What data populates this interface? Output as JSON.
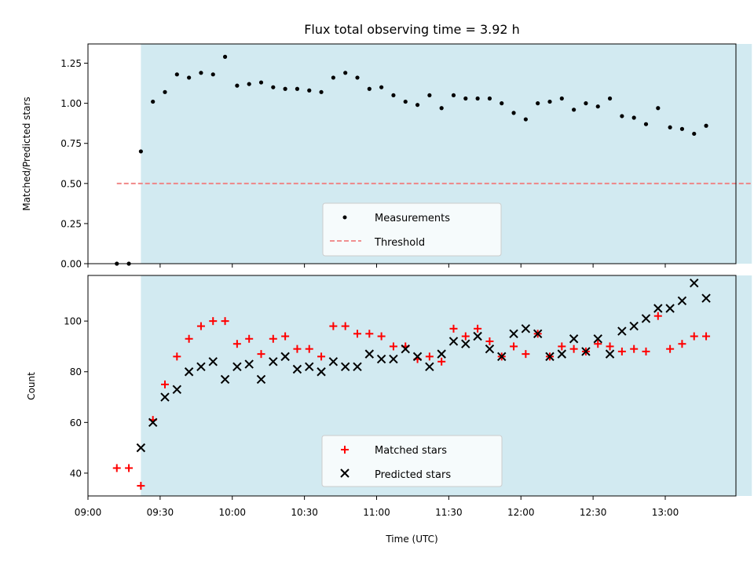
{
  "chart_data": [
    {
      "type": "scatter",
      "title": "Flux total observing time = 3.92 h",
      "xlabel": "",
      "ylabel": "Matched/Predicted stars",
      "ylim": [
        0.0,
        1.37
      ],
      "yticks": [
        "0.00",
        "0.25",
        "0.50",
        "0.75",
        "1.00",
        "1.25"
      ],
      "xlim": [
        "09:00",
        "13:30"
      ],
      "shaded_interval": [
        "09:22",
        "13:36"
      ],
      "shade_color": "#add8e6",
      "series": [
        {
          "name": "Measurements",
          "color": "#000000",
          "marker": "dot",
          "x": [
            "09:12",
            "09:17",
            "09:22",
            "09:27",
            "09:32",
            "09:37",
            "09:42",
            "09:47",
            "09:52",
            "09:57",
            "10:02",
            "10:07",
            "10:12",
            "10:17",
            "10:22",
            "10:27",
            "10:32",
            "10:37",
            "10:42",
            "10:47",
            "10:52",
            "10:57",
            "11:02",
            "11:07",
            "11:12",
            "11:17",
            "11:22",
            "11:27",
            "11:32",
            "11:37",
            "11:42",
            "11:47",
            "11:52",
            "11:57",
            "12:02",
            "12:07",
            "12:12",
            "12:17",
            "12:22",
            "12:27",
            "12:32",
            "12:37",
            "12:42",
            "12:47",
            "12:52",
            "12:57",
            "13:02",
            "13:07",
            "13:12",
            "13:17"
          ],
          "y": [
            0.0,
            0.0,
            0.7,
            1.01,
            1.07,
            1.18,
            1.16,
            1.19,
            1.18,
            1.29,
            1.11,
            1.12,
            1.13,
            1.1,
            1.09,
            1.09,
            1.08,
            1.07,
            1.16,
            1.19,
            1.16,
            1.09,
            1.1,
            1.05,
            1.01,
            0.99,
            1.05,
            0.97,
            1.05,
            1.03,
            1.03,
            1.03,
            1.0,
            0.94,
            0.9,
            1.0,
            1.01,
            1.03,
            0.96,
            1.0,
            0.98,
            1.03,
            0.92,
            0.91,
            0.87,
            0.97,
            0.85,
            0.84,
            0.81,
            0.86
          ]
        },
        {
          "name": "Threshold",
          "color": "#f08080",
          "style": "dashed",
          "x": [
            "09:12",
            "13:36"
          ],
          "y": [
            0.5,
            0.5
          ]
        }
      ],
      "legend": "lower-center"
    },
    {
      "type": "scatter",
      "title": "",
      "xlabel": "Time (UTC)",
      "ylabel": "Count",
      "ylim": [
        31,
        118
      ],
      "yticks": [
        "40",
        "60",
        "80",
        "100"
      ],
      "xlim": [
        "09:00",
        "13:30"
      ],
      "xticks": [
        "09:00",
        "09:30",
        "10:00",
        "10:30",
        "11:00",
        "11:30",
        "12:00",
        "12:30",
        "13:00"
      ],
      "shaded_interval": [
        "09:22",
        "13:36"
      ],
      "shade_color": "#add8e6",
      "series": [
        {
          "name": "Matched stars",
          "color": "#ff0000",
          "marker": "plus",
          "x": [
            "09:12",
            "09:17",
            "09:22",
            "09:27",
            "09:32",
            "09:37",
            "09:42",
            "09:47",
            "09:52",
            "09:57",
            "10:02",
            "10:07",
            "10:12",
            "10:17",
            "10:22",
            "10:27",
            "10:32",
            "10:37",
            "10:42",
            "10:47",
            "10:52",
            "10:57",
            "11:02",
            "11:07",
            "11:12",
            "11:17",
            "11:22",
            "11:27",
            "11:32",
            "11:37",
            "11:42",
            "11:47",
            "11:52",
            "11:57",
            "12:02",
            "12:07",
            "12:12",
            "12:17",
            "12:22",
            "12:27",
            "12:32",
            "12:37",
            "12:42",
            "12:47",
            "12:52",
            "12:57",
            "13:02",
            "13:07",
            "13:12",
            "13:17"
          ],
          "y": [
            42,
            42,
            35,
            61,
            75,
            86,
            93,
            98,
            100,
            100,
            91,
            93,
            87,
            93,
            94,
            89,
            89,
            86,
            98,
            98,
            95,
            95,
            94,
            90,
            90,
            85,
            86,
            84,
            97,
            94,
            97,
            92,
            86,
            90,
            87,
            95,
            86,
            90,
            89,
            88,
            91,
            90,
            88,
            89,
            88,
            102,
            89,
            91,
            94,
            94
          ]
        },
        {
          "name": "Predicted stars",
          "color": "#000000",
          "marker": "x",
          "x": [
            "09:22",
            "09:27",
            "09:32",
            "09:37",
            "09:42",
            "09:47",
            "09:52",
            "09:57",
            "10:02",
            "10:07",
            "10:12",
            "10:17",
            "10:22",
            "10:27",
            "10:32",
            "10:37",
            "10:42",
            "10:47",
            "10:52",
            "10:57",
            "11:02",
            "11:07",
            "11:12",
            "11:17",
            "11:22",
            "11:27",
            "11:32",
            "11:37",
            "11:42",
            "11:47",
            "11:52",
            "11:57",
            "12:02",
            "12:07",
            "12:12",
            "12:17",
            "12:22",
            "12:27",
            "12:32",
            "12:37",
            "12:42",
            "12:47",
            "12:52",
            "12:57",
            "13:02",
            "13:07",
            "13:12",
            "13:17"
          ],
          "y": [
            50,
            60,
            70,
            73,
            80,
            82,
            84,
            77,
            82,
            83,
            77,
            84,
            86,
            81,
            82,
            80,
            84,
            82,
            82,
            87,
            85,
            85,
            89,
            86,
            82,
            87,
            92,
            91,
            94,
            89,
            86,
            95,
            97,
            95,
            86,
            87,
            93,
            88,
            93,
            87,
            96,
            98,
            101,
            105,
            105,
            108,
            115,
            109
          ]
        }
      ],
      "legend": "lower-center"
    }
  ]
}
